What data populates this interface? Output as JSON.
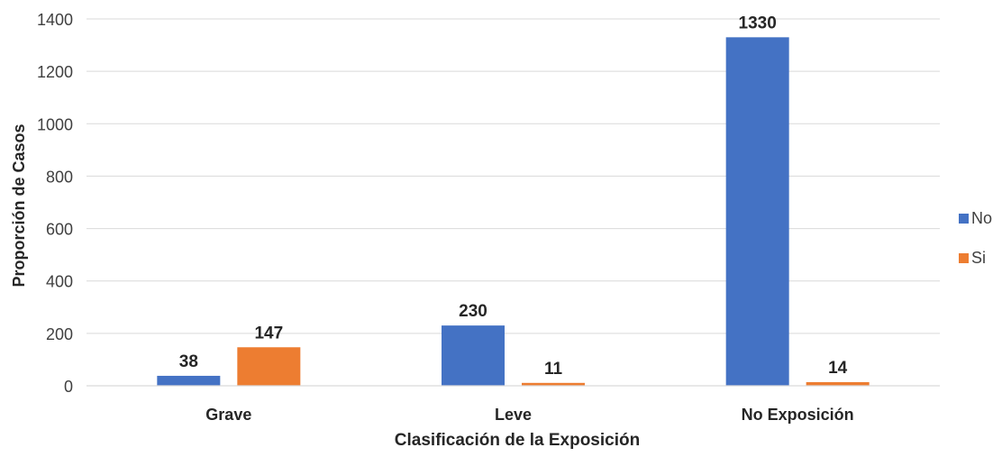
{
  "chart_data": {
    "type": "bar",
    "title": "",
    "xlabel": "Clasificación de la Exposición",
    "ylabel": "Proporción de Casos",
    "categories": [
      "Grave",
      "Leve",
      "No Exposición"
    ],
    "series": [
      {
        "name": "No",
        "values": [
          38,
          230,
          1330
        ],
        "color": "#4472C4"
      },
      {
        "name": "Si",
        "values": [
          147,
          11,
          14
        ],
        "color": "#ED7D31"
      }
    ],
    "ylim": [
      0,
      1400
    ],
    "yticks": [
      0,
      200,
      400,
      600,
      800,
      1000,
      1200,
      1400
    ],
    "grid": true,
    "legend": "right",
    "data_labels": true
  }
}
